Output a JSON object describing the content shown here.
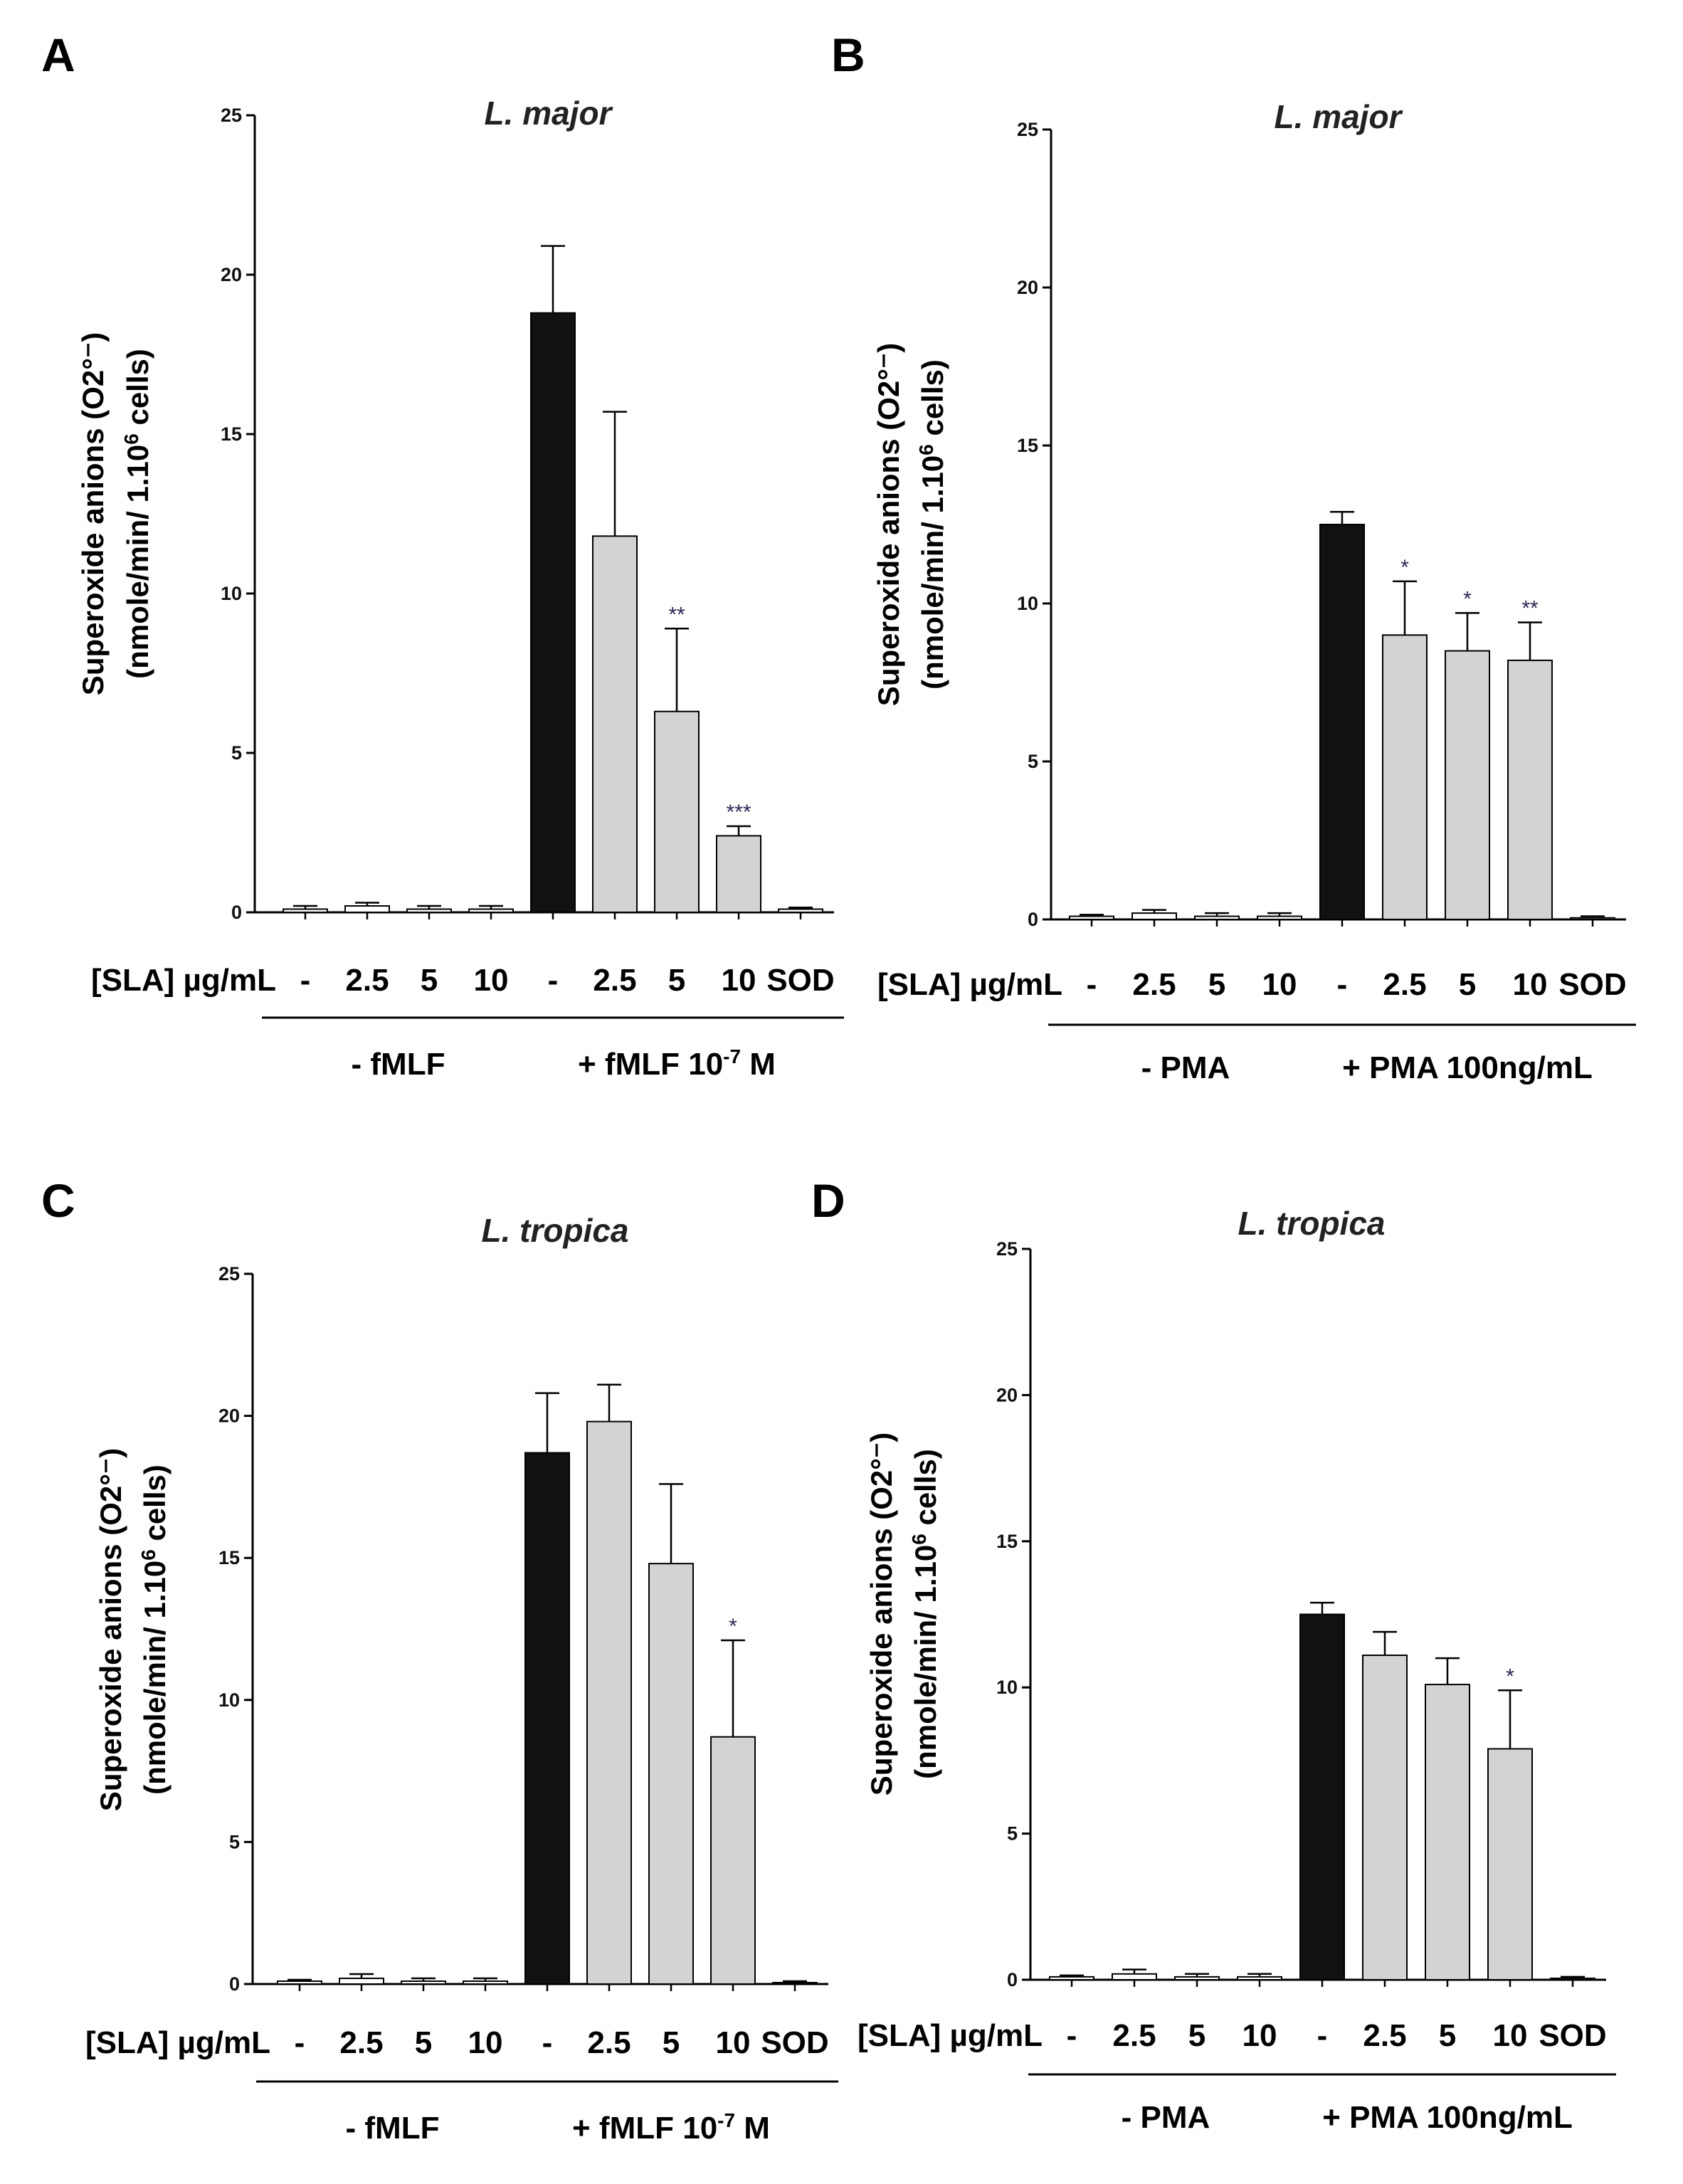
{
  "chart_data": [
    {
      "panel": "A",
      "type": "bar",
      "title": "L. major",
      "ylabel_line1": "Superoxide anions (O2°⁻)",
      "ylabel_line2_pre": "(nmole/min/ 1.10",
      "ylabel_sup": "6",
      "ylabel_line2_post": " cells)",
      "ylim": [
        0,
        25
      ],
      "yticks": [
        "0",
        "5",
        "10",
        "15",
        "20",
        "25"
      ],
      "xlabel_prefix": "[SLA] µg/mL",
      "categories": [
        "-",
        "2.5",
        "5",
        "10",
        "-",
        "2.5",
        "5",
        "10",
        "SOD"
      ],
      "values": [
        0.1,
        0.2,
        0.1,
        0.1,
        18.8,
        11.8,
        6.3,
        2.4,
        0.1
      ],
      "errors": [
        0.1,
        0.1,
        0.1,
        0.1,
        2.1,
        3.9,
        2.6,
        0.3,
        0.05
      ],
      "colors": [
        "#ffffff",
        "#ffffff",
        "#ffffff",
        "#ffffff",
        "#111111",
        "#d3d3d3",
        "#d3d3d3",
        "#d3d3d3",
        "#ffffff"
      ],
      "significance": [
        "",
        "",
        "",
        "",
        "",
        "",
        "**",
        "***",
        ""
      ],
      "groups": [
        {
          "label": "- fMLF",
          "label_sup": "",
          "label_post": "",
          "start": 0,
          "end": 3
        },
        {
          "label": "+ fMLF 10",
          "label_sup": "-7",
          "label_post": " M",
          "start": 4,
          "end": 8
        }
      ]
    },
    {
      "panel": "B",
      "type": "bar",
      "title": "L. major",
      "ylabel_line1": "Superoxide anions (O2°⁻)",
      "ylabel_line2_pre": "(nmole/min/ 1.10",
      "ylabel_sup": "6",
      "ylabel_line2_post": " cells)",
      "ylim": [
        0,
        25
      ],
      "yticks": [
        "0",
        "5",
        "10",
        "15",
        "20",
        "25"
      ],
      "xlabel_prefix": "[SLA] µg/mL",
      "categories": [
        "-",
        "2.5",
        "5",
        "10",
        "-",
        "2.5",
        "5",
        "10",
        "SOD"
      ],
      "values": [
        0.1,
        0.2,
        0.1,
        0.1,
        12.5,
        9.0,
        8.5,
        8.2,
        0.05
      ],
      "errors": [
        0.05,
        0.1,
        0.1,
        0.1,
        0.4,
        1.7,
        1.2,
        1.2,
        0.05
      ],
      "colors": [
        "#ffffff",
        "#ffffff",
        "#ffffff",
        "#ffffff",
        "#111111",
        "#d3d3d3",
        "#d3d3d3",
        "#d3d3d3",
        "#ffffff"
      ],
      "significance": [
        "",
        "",
        "",
        "",
        "",
        "*",
        "*",
        "**",
        ""
      ],
      "groups": [
        {
          "label": "- PMA",
          "label_sup": "",
          "label_post": "",
          "start": 0,
          "end": 3
        },
        {
          "label": "+ PMA 100ng/mL",
          "label_sup": "",
          "label_post": "",
          "start": 4,
          "end": 8
        }
      ]
    },
    {
      "panel": "C",
      "type": "bar",
      "title": "L. tropica",
      "ylabel_line1": "Superoxide anions (O2°⁻)",
      "ylabel_line2_pre": "(nmole/min/ 1.10",
      "ylabel_sup": "6",
      "ylabel_line2_post": " cells)",
      "ylim": [
        0,
        25
      ],
      "yticks": [
        "0",
        "5",
        "10",
        "15",
        "20",
        "25"
      ],
      "xlabel_prefix": "[SLA] µg/mL",
      "categories": [
        "-",
        "2.5",
        "5",
        "10",
        "-",
        "2.5",
        "5",
        "10",
        "SOD"
      ],
      "values": [
        0.1,
        0.2,
        0.1,
        0.1,
        18.7,
        19.8,
        14.8,
        8.7,
        0.05
      ],
      "errors": [
        0.05,
        0.15,
        0.1,
        0.1,
        2.1,
        1.3,
        2.8,
        3.4,
        0.05
      ],
      "colors": [
        "#ffffff",
        "#ffffff",
        "#ffffff",
        "#ffffff",
        "#111111",
        "#d3d3d3",
        "#d3d3d3",
        "#d3d3d3",
        "#ffffff"
      ],
      "significance": [
        "",
        "",
        "",
        "",
        "",
        "",
        "",
        "*",
        ""
      ],
      "groups": [
        {
          "label": "- fMLF",
          "label_sup": "",
          "label_post": "",
          "start": 0,
          "end": 3
        },
        {
          "label": "+ fMLF 10",
          "label_sup": "-7",
          "label_post": " M",
          "start": 4,
          "end": 8
        }
      ]
    },
    {
      "panel": "D",
      "type": "bar",
      "title": "L. tropica",
      "ylabel_line1": "Superoxide anions (O2°⁻)",
      "ylabel_line2_pre": "(nmole/min/ 1.10",
      "ylabel_sup": "6",
      "ylabel_line2_post": " cells)",
      "ylim": [
        0,
        25
      ],
      "yticks": [
        "0",
        "5",
        "10",
        "15",
        "20",
        "25"
      ],
      "xlabel_prefix": "[SLA] µg/mL",
      "categories": [
        "-",
        "2.5",
        "5",
        "10",
        "-",
        "2.5",
        "5",
        "10",
        "SOD"
      ],
      "values": [
        0.1,
        0.2,
        0.1,
        0.1,
        12.5,
        11.1,
        10.1,
        7.9,
        0.05
      ],
      "errors": [
        0.05,
        0.15,
        0.1,
        0.1,
        0.4,
        0.8,
        0.9,
        2.0,
        0.05
      ],
      "colors": [
        "#ffffff",
        "#ffffff",
        "#ffffff",
        "#ffffff",
        "#111111",
        "#d3d3d3",
        "#d3d3d3",
        "#d3d3d3",
        "#ffffff"
      ],
      "significance": [
        "",
        "",
        "",
        "",
        "",
        "",
        "",
        "*",
        ""
      ],
      "groups": [
        {
          "label": "- PMA",
          "label_sup": "",
          "label_post": "",
          "start": 0,
          "end": 3
        },
        {
          "label": "+ PMA 100ng/mL",
          "label_sup": "",
          "label_post": "",
          "start": 4,
          "end": 8
        }
      ]
    }
  ]
}
